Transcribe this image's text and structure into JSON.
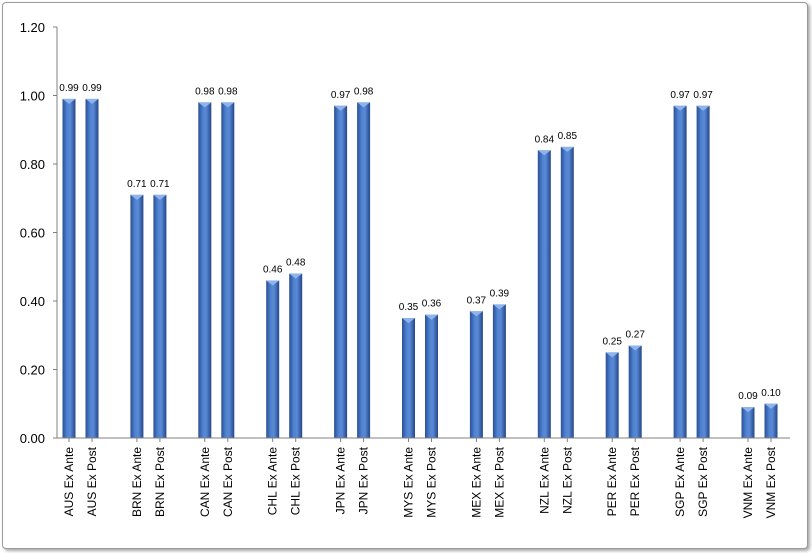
{
  "chart_data": {
    "type": "bar",
    "title": "",
    "xlabel": "",
    "ylabel": "",
    "ylim": [
      0,
      1.2
    ],
    "yticks": [
      "0.00",
      "0.20",
      "0.40",
      "0.60",
      "0.80",
      "1.00",
      "1.20"
    ],
    "grid": false,
    "legend": "none",
    "bar_color": "#3d6fc0",
    "categories": [
      "AUS Ex Ante",
      "AUS Ex Post",
      "BRN Ex Ante",
      "BRN Ex Post",
      "CAN Ex Ante",
      "CAN Ex Post",
      "CHL Ex Ante",
      "CHL Ex Post",
      "JPN Ex Ante",
      "JPN Ex Post",
      "MYS Ex Ante",
      "MYS Ex Post",
      "MEX Ex Ante",
      "MEX Ex Post",
      "NZL Ex Ante",
      "NZL Ex Post",
      "PER Ex Ante",
      "PER Ex Post",
      "SGP Ex Ante",
      "SGP Ex Post",
      "VNM Ex Ante",
      "VNM Ex Post"
    ],
    "values": [
      0.99,
      0.99,
      0.71,
      0.71,
      0.98,
      0.98,
      0.46,
      0.48,
      0.97,
      0.98,
      0.35,
      0.36,
      0.37,
      0.39,
      0.84,
      0.85,
      0.25,
      0.27,
      0.97,
      0.97,
      0.09,
      0.1
    ],
    "data_labels": [
      "0.99",
      "0.99",
      "0.71",
      "0.71",
      "0.98",
      "0.98",
      "0.46",
      "0.48",
      "0.97",
      "0.98",
      "0.35",
      "0.36",
      "0.37",
      "0.39",
      "0.84",
      "0.85",
      "0.25",
      "0.27",
      "0.97",
      "0.97",
      "0.09",
      "0.10"
    ]
  }
}
